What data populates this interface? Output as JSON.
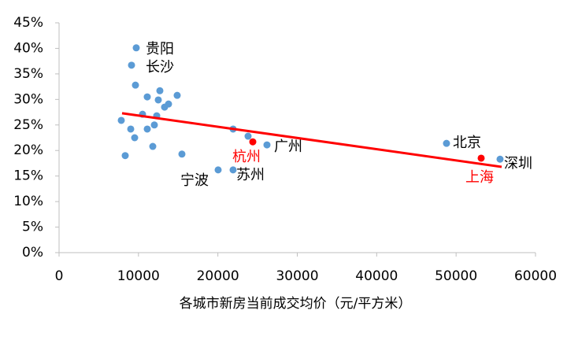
{
  "chart_data": {
    "type": "scatter",
    "x_label": "各城市新房当前成交均价（元/平方米）",
    "xlim": [
      0,
      60000
    ],
    "xticks": [
      0,
      10000,
      20000,
      30000,
      40000,
      50000,
      60000
    ],
    "ylim": [
      0,
      45
    ],
    "yticks": [
      {
        "value": 0,
        "label": "0%"
      },
      {
        "value": 5,
        "label": "5%"
      },
      {
        "value": 10,
        "label": "10%"
      },
      {
        "value": 15,
        "label": "15%"
      },
      {
        "value": 20,
        "label": "20%"
      },
      {
        "value": 25,
        "label": "25%"
      },
      {
        "value": 30,
        "label": "30%"
      },
      {
        "value": 35,
        "label": "35%"
      },
      {
        "value": 40,
        "label": "40%"
      },
      {
        "value": 45,
        "label": "45%"
      }
    ],
    "grid": false,
    "series": [
      {
        "color": "#5b9bd5",
        "x": [
          9719,
          9124,
          9620,
          12694,
          11107,
          12496,
          14876,
          13785,
          13289,
          10512,
          12298,
          7835,
          9025,
          12000,
          11107,
          9521,
          11802,
          8331,
          15471,
          20033,
          21917,
          23802,
          21917,
          26182,
          48793,
          55537
        ],
        "values": [
          40.1,
          36.7,
          32.8,
          31.7,
          30.5,
          29.9,
          30.8,
          29.1,
          28.5,
          27.1,
          26.8,
          25.9,
          24.2,
          25.0,
          24.2,
          22.5,
          20.8,
          19.0,
          19.3,
          16.2,
          24.2,
          22.8,
          16.2,
          21.1,
          21.4,
          18.3
        ],
        "labels": [
          "贵阳",
          "长沙",
          null,
          null,
          null,
          null,
          null,
          null,
          null,
          null,
          null,
          null,
          null,
          null,
          null,
          null,
          null,
          null,
          null,
          "宁波",
          null,
          null,
          "苏州",
          "广州",
          "北京",
          "深圳"
        ],
        "label_color": "#000000"
      },
      {
        "color": "#ff0000",
        "x": [
          24397,
          53157
        ],
        "values": [
          21.7,
          18.5
        ],
        "labels": [
          "杭州",
          "上海"
        ],
        "label_color": "#ff0000"
      }
    ],
    "trendline": {
      "color": "#ff0000",
      "x": [
        7934,
        55736
      ],
      "values": [
        27.3,
        16.8
      ]
    }
  }
}
